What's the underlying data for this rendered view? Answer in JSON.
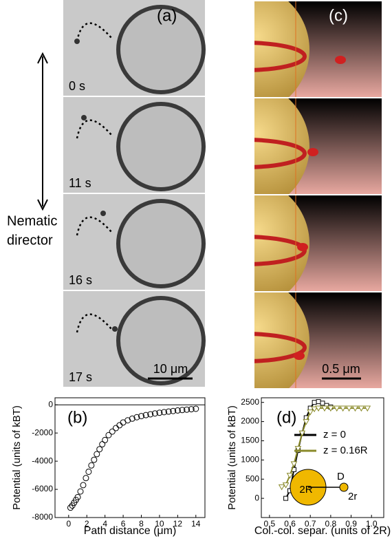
{
  "figure": {
    "panel_a_label": "(a)",
    "panel_c_label": "(c)",
    "times": [
      "0 s",
      "11 s",
      "16 s",
      "17 s"
    ],
    "scale_a": "10 μm",
    "scale_c": "0.5 μm",
    "director": [
      "Nematic",
      "director"
    ]
  },
  "chart_data": [
    {
      "type": "scatter",
      "panel_label": "(b)",
      "x_label": "Path distance (μm)",
      "y_label": "Potential (units of kBT)",
      "xlim": [
        -1.5,
        15
      ],
      "ylim": [
        -8000,
        500
      ],
      "xticks": [
        0,
        2,
        4,
        6,
        8,
        10,
        12,
        14
      ],
      "yticks": [
        0,
        -2000,
        -4000,
        -6000,
        -8000
      ],
      "zero_line": true,
      "series": [
        {
          "name": null,
          "color": "#000000",
          "x": [
            0.2,
            0.4,
            0.6,
            0.8,
            1.0,
            1.3,
            1.6,
            1.9,
            2.2,
            2.5,
            2.8,
            3.1,
            3.4,
            3.7,
            4.0,
            4.4,
            4.8,
            5.2,
            5.6,
            6.0,
            6.5,
            7.0,
            7.5,
            8.0,
            8.5,
            9.0,
            9.5,
            10.0,
            10.5,
            11.0,
            11.5,
            12.0,
            12.5,
            13.0,
            13.5,
            14.0
          ],
          "values": [
            -7300,
            -7150,
            -6950,
            -6750,
            -6550,
            -6150,
            -5700,
            -5200,
            -4750,
            -4300,
            -3900,
            -3500,
            -3150,
            -2800,
            -2500,
            -2150,
            -1900,
            -1650,
            -1450,
            -1250,
            -1100,
            -980,
            -880,
            -800,
            -730,
            -670,
            -610,
            -560,
            -520,
            -480,
            -440,
            -400,
            -370,
            -340,
            -310,
            -280
          ]
        }
      ]
    },
    {
      "type": "line",
      "panel_label": "(d)",
      "x_label": "Col.-col. separ. (units of 2R)",
      "y_label": "Potential (units of kBT)",
      "xlim": [
        0.46,
        1.06
      ],
      "ylim": [
        -500,
        2620
      ],
      "xticks": [
        0.5,
        0.6,
        0.7,
        0.8,
        0.9,
        {
          "value": 1,
          "label": "1.0"
        }
      ],
      "yticks": [
        0,
        500,
        1000,
        1500,
        2000,
        2500
      ],
      "inset_labels": [
        "2R",
        "D",
        "2r"
      ],
      "series": [
        {
          "name": "z = 0",
          "color": "#000000",
          "marker": "square",
          "x": [
            0.58,
            0.6,
            0.62,
            0.64,
            0.66,
            0.68,
            0.7,
            0.72,
            0.74,
            0.76,
            0.78,
            0.8
          ],
          "values": [
            0,
            200,
            750,
            1250,
            1700,
            2100,
            2350,
            2500,
            2520,
            2480,
            2420,
            2380
          ]
        },
        {
          "name": "z = 0.16R",
          "color": "#8a8a2a",
          "marker": "triangle",
          "x": [
            0.56,
            0.58,
            0.6,
            0.62,
            0.64,
            0.66,
            0.68,
            0.7,
            0.72,
            0.74,
            0.77,
            0.8,
            0.83,
            0.86,
            0.89,
            0.92,
            0.95,
            0.98
          ],
          "values": [
            300,
            350,
            600,
            900,
            1300,
            1700,
            2000,
            2250,
            2330,
            2350,
            2350,
            2350,
            2350,
            2350,
            2350,
            2350,
            2350,
            2350
          ]
        }
      ]
    }
  ]
}
